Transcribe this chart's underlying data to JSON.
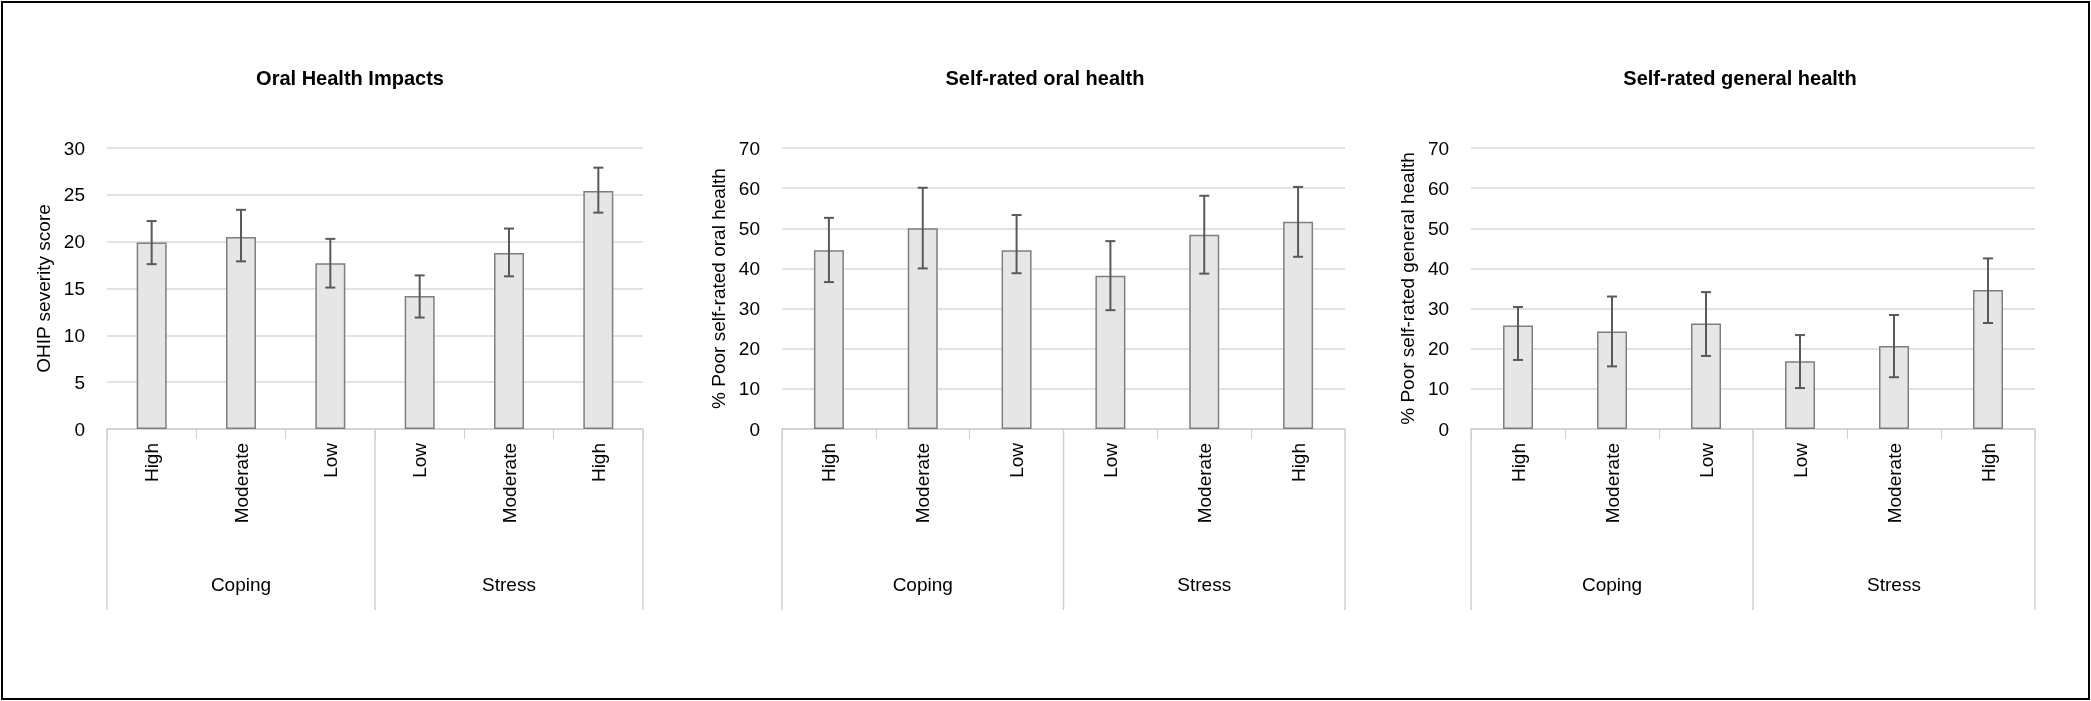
{
  "chart_data": [
    {
      "type": "bar",
      "title": "Oral Health Impacts",
      "ylabel": "OHIP severity score",
      "categories": [
        "High",
        "Moderate",
        "Low",
        "Low",
        "Moderate",
        "High"
      ],
      "values": [
        19.9,
        20.5,
        17.7,
        14.2,
        18.8,
        25.4
      ],
      "errors": [
        [
          17.6,
          22.2
        ],
        [
          17.9,
          23.4
        ],
        [
          15.1,
          20.3
        ],
        [
          11.9,
          16.4
        ],
        [
          16.3,
          21.4
        ],
        [
          23.1,
          27.9
        ]
      ],
      "color": "#e6e6e6",
      "ylim": [
        0,
        30
      ],
      "yticks": [
        0,
        5,
        10,
        15,
        20,
        25,
        30
      ],
      "grid": "y",
      "annotations": [
        "Coping",
        "Stress"
      ]
    },
    {
      "type": "bar",
      "title": "Self-rated oral health",
      "ylabel": "% Poor self-rated oral health",
      "categories": [
        "High",
        "Moderate",
        "Low",
        "Low",
        "Moderate",
        "High"
      ],
      "values": [
        44.5,
        50,
        44.5,
        38.2,
        48.4,
        51.6
      ],
      "errors": [
        [
          36.6,
          52.6
        ],
        [
          40,
          60.1
        ],
        [
          38.8,
          53.3
        ],
        [
          29.6,
          46.8
        ],
        [
          38.7,
          58.1
        ],
        [
          42.9,
          60.3
        ]
      ],
      "color": "#e6e6e6",
      "ylim": [
        0,
        70
      ],
      "yticks": [
        0,
        10,
        20,
        30,
        40,
        50,
        60,
        70
      ],
      "grid": "y",
      "annotations": [
        "Coping",
        "Stress"
      ]
    },
    {
      "type": "bar",
      "title": "Self-rated general health",
      "ylabel": "% Poor self-rated general health",
      "categories": [
        "High",
        "Moderate",
        "Low",
        "Low",
        "Moderate",
        "High"
      ],
      "values": [
        25.8,
        24.3,
        26.3,
        16.9,
        20.7,
        34.6
      ],
      "errors": [
        [
          17.2,
          30.4
        ],
        [
          15.6,
          33
        ],
        [
          18.2,
          34.1
        ],
        [
          10.2,
          23.4
        ],
        [
          12.9,
          28.4
        ],
        [
          26.4,
          42.5
        ]
      ],
      "color": "#e6e6e6",
      "ylim": [
        0,
        70
      ],
      "yticks": [
        0,
        10,
        20,
        30,
        40,
        50,
        60,
        70
      ],
      "grid": "y",
      "annotations": [
        "Coping",
        "Stress"
      ]
    }
  ]
}
